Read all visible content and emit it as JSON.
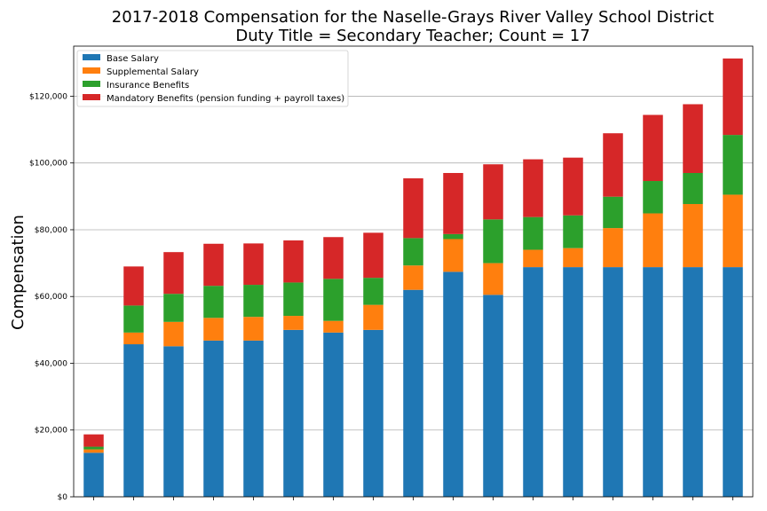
{
  "chart_data": {
    "type": "bar",
    "stacked": true,
    "title": "2017-2018 Compensation for the Naselle-Grays River Valley School District",
    "subtitle": "Duty Title = Secondary Teacher; Count = 17",
    "xlabel": "",
    "ylabel": "Compensation",
    "ylim": [
      0,
      135000
    ],
    "yticks": [
      0,
      20000,
      40000,
      60000,
      80000,
      100000,
      120000
    ],
    "ytick_labels": [
      "$0",
      "$20,000",
      "$40,000",
      "$60,000",
      "$80,000",
      "$100,000",
      "$120,000"
    ],
    "categories": [
      "",
      "",
      "",
      "",
      "",
      "",
      "",
      "",
      "",
      "",
      "",
      "",
      "",
      "",
      "",
      "",
      ""
    ],
    "grid": "horizontal",
    "legend_position": "top-left",
    "series": [
      {
        "name": "Base Salary",
        "color": "#1f77b4",
        "values": [
          13200,
          45700,
          45100,
          46800,
          46800,
          50000,
          49200,
          50000,
          62000,
          67400,
          60500,
          68800,
          68800,
          68800,
          68800,
          68800,
          68800
        ]
      },
      {
        "name": "Supplemental Salary",
        "color": "#ff7f0e",
        "values": [
          1000,
          3500,
          7300,
          6800,
          7100,
          4200,
          3500,
          7500,
          7300,
          9800,
          9500,
          5200,
          5700,
          11700,
          16100,
          18900,
          21700
        ]
      },
      {
        "name": "Insurance Benefits",
        "color": "#2ca02c",
        "values": [
          800,
          8100,
          8400,
          9600,
          9600,
          10000,
          12600,
          8100,
          8200,
          1500,
          13100,
          9800,
          9800,
          9400,
          9700,
          9300,
          17900
        ]
      },
      {
        "name": "Mandatory Benefits (pension funding + payroll taxes)",
        "color": "#d62728",
        "values": [
          3700,
          11700,
          12500,
          12600,
          12400,
          12600,
          12500,
          13500,
          17900,
          18300,
          16500,
          17300,
          17300,
          19000,
          19800,
          20600,
          22900
        ]
      }
    ]
  }
}
